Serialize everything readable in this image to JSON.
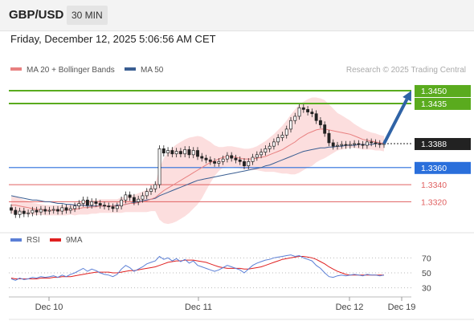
{
  "header": {
    "symbol": "GBP/USD",
    "timeframe": "30 MIN"
  },
  "timestamp": "Friday, December 12, 2025 5:06:56 AM CET",
  "attribution": "Research © 2025 Trading Central",
  "colors": {
    "resistance": "#5aab1e",
    "support": "#2a6fdb",
    "last": "#222222",
    "minor": "#e06060",
    "ma20": "#e88080",
    "ma50": "#3a5e92",
    "band": "#fbd3d3",
    "rsi": "#5b7fd6",
    "rsi_ma": "#e02020",
    "arrow": "#2f63a6"
  },
  "chart_data": [
    {
      "type": "candlestick",
      "legend": [
        {
          "name": "MA 20 + Bollinger Bands",
          "color": "#e88080"
        },
        {
          "name": "MA 50",
          "color": "#3a5e92"
        }
      ],
      "y_range": [
        1.3295,
        1.3465
      ],
      "x_labels": [
        "Dec 10",
        "Dec 11",
        "Dec 12",
        "Dec 19"
      ],
      "levels": [
        {
          "value": 1.345,
          "label": "1.3450",
          "kind": "resistance"
        },
        {
          "value": 1.3435,
          "label": "1.3435",
          "kind": "resistance"
        },
        {
          "value": 1.3388,
          "label": "1.3388",
          "kind": "last"
        },
        {
          "value": 1.336,
          "label": "1.3360",
          "kind": "support"
        },
        {
          "value": 1.334,
          "label": "1.3340",
          "kind": "minor"
        },
        {
          "value": 1.332,
          "label": "1.3320",
          "kind": "minor"
        }
      ],
      "projection": {
        "from": 1.3388,
        "to": 1.345
      },
      "close": [
        1.331,
        1.3305,
        1.3309,
        1.3306,
        1.3307,
        1.331,
        1.3308,
        1.3311,
        1.3309,
        1.331,
        1.3311,
        1.3309,
        1.3313,
        1.331,
        1.3312,
        1.3315,
        1.3318,
        1.3322,
        1.3316,
        1.332,
        1.3318,
        1.3316,
        1.3315,
        1.3314,
        1.3312,
        1.3315,
        1.3322,
        1.3328,
        1.3325,
        1.332,
        1.3323,
        1.3327,
        1.3332,
        1.3335,
        1.334,
        1.3382,
        1.3377,
        1.338,
        1.3376,
        1.3379,
        1.3376,
        1.3381,
        1.3375,
        1.338,
        1.3373,
        1.3371,
        1.3369,
        1.3367,
        1.3365,
        1.3367,
        1.337,
        1.3374,
        1.3371,
        1.3369,
        1.3367,
        1.3362,
        1.3367,
        1.3372,
        1.3375,
        1.3378,
        1.3382,
        1.3385,
        1.339,
        1.3395,
        1.3398,
        1.3405,
        1.3415,
        1.342,
        1.343,
        1.3428,
        1.3425,
        1.3423,
        1.3415,
        1.341,
        1.34,
        1.3389,
        1.3385,
        1.3386,
        1.3387,
        1.3386,
        1.3387,
        1.3388,
        1.3387,
        1.3386,
        1.339,
        1.3389,
        1.3388,
        1.3387,
        1.3388
      ],
      "ma20": [
        1.3316,
        1.3316,
        1.3315,
        1.3314,
        1.3313,
        1.3312,
        1.3311,
        1.3311,
        1.331,
        1.331,
        1.331,
        1.331,
        1.331,
        1.331,
        1.3311,
        1.3311,
        1.3312,
        1.3313,
        1.3313,
        1.3314,
        1.3314,
        1.3315,
        1.3315,
        1.3315,
        1.3315,
        1.3315,
        1.3316,
        1.3317,
        1.3318,
        1.3318,
        1.3319,
        1.332,
        1.3321,
        1.3323,
        1.3325,
        1.3329,
        1.3333,
        1.3336,
        1.3339,
        1.3342,
        1.3345,
        1.3348,
        1.3351,
        1.3354,
        1.3357,
        1.336,
        1.3363,
        1.3366,
        1.3368,
        1.337,
        1.3372,
        1.3373,
        1.3373,
        1.3372,
        1.3371,
        1.337,
        1.337,
        1.337,
        1.3371,
        1.3372,
        1.3373,
        1.3375,
        1.3377,
        1.3379,
        1.3381,
        1.3384,
        1.3387,
        1.339,
        1.3394,
        1.3397,
        1.34,
        1.3402,
        1.3404,
        1.3405,
        1.3405,
        1.3404,
        1.3403,
        1.3402,
        1.3401,
        1.34,
        1.3399,
        1.3397,
        1.3395,
        1.3393,
        1.3392,
        1.3391,
        1.339,
        1.3389,
        1.3388
      ],
      "band_width": [
        0.001,
        0.001,
        0.0009,
        0.0008,
        0.0008,
        0.0007,
        0.0007,
        0.0006,
        0.0006,
        0.0006,
        0.0006,
        0.0006,
        0.0006,
        0.0006,
        0.0006,
        0.0007,
        0.0007,
        0.0008,
        0.0008,
        0.0008,
        0.0008,
        0.0008,
        0.0008,
        0.0008,
        0.0008,
        0.0008,
        0.0009,
        0.0009,
        0.001,
        0.001,
        0.0011,
        0.0012,
        0.0013,
        0.0014,
        0.0016,
        0.003,
        0.0038,
        0.0042,
        0.0044,
        0.0045,
        0.0045,
        0.0045,
        0.0044,
        0.0042,
        0.004,
        0.0036,
        0.003,
        0.0024,
        0.0018,
        0.0014,
        0.0012,
        0.0012,
        0.0012,
        0.0012,
        0.0012,
        0.0012,
        0.0012,
        0.0013,
        0.0014,
        0.0016,
        0.0018,
        0.002,
        0.0022,
        0.0025,
        0.0028,
        0.0031,
        0.0035,
        0.0038,
        0.004,
        0.004,
        0.004,
        0.004,
        0.0038,
        0.0036,
        0.0034,
        0.003,
        0.0026,
        0.0022,
        0.002,
        0.0018,
        0.0016,
        0.0014,
        0.0013,
        0.0012,
        0.0011,
        0.001,
        0.001,
        0.0009,
        0.0009
      ],
      "ma50": [
        1.3327,
        1.3326,
        1.3325,
        1.3324,
        1.3323,
        1.3322,
        1.3322,
        1.3321,
        1.332,
        1.332,
        1.3319,
        1.3318,
        1.3318,
        1.3317,
        1.3317,
        1.3316,
        1.3316,
        1.3316,
        1.3315,
        1.3315,
        1.3315,
        1.3315,
        1.3315,
        1.3315,
        1.3315,
        1.3316,
        1.3316,
        1.3317,
        1.3318,
        1.3319,
        1.332,
        1.3321,
        1.3322,
        1.3323,
        1.3324,
        1.3327,
        1.3329,
        1.3331,
        1.3333,
        1.3335,
        1.3337,
        1.3339,
        1.3341,
        1.3343,
        1.3345,
        1.3346,
        1.3347,
        1.3348,
        1.3349,
        1.335,
        1.3351,
        1.3352,
        1.3353,
        1.3354,
        1.3355,
        1.3356,
        1.3357,
        1.3358,
        1.3359,
        1.336,
        1.3362,
        1.3363,
        1.3365,
        1.3367,
        1.3369,
        1.3371,
        1.3373,
        1.3375,
        1.3377,
        1.3379,
        1.338,
        1.3381,
        1.3382,
        1.3383,
        1.3383,
        1.3384,
        1.3384,
        1.3385,
        1.3385,
        1.3386,
        1.3386,
        1.3386,
        1.3387,
        1.3387,
        1.3387,
        1.3387,
        1.3388,
        1.3388,
        1.3388
      ]
    },
    {
      "type": "line",
      "legend": [
        {
          "name": "RSI",
          "color": "#5b7fd6"
        },
        {
          "name": "9MA",
          "color": "#e02020"
        }
      ],
      "y_range": [
        20,
        80
      ],
      "y_ticks": [
        70,
        50,
        30
      ],
      "rsi": [
        42,
        40,
        43,
        41,
        42,
        44,
        43,
        45,
        44,
        45,
        46,
        44,
        47,
        45,
        48,
        50,
        53,
        56,
        52,
        55,
        53,
        50,
        48,
        47,
        45,
        48,
        55,
        60,
        57,
        52,
        55,
        58,
        62,
        64,
        66,
        72,
        68,
        70,
        66,
        69,
        65,
        68,
        63,
        66,
        60,
        58,
        56,
        54,
        52,
        54,
        57,
        60,
        58,
        56,
        54,
        50,
        55,
        60,
        63,
        65,
        67,
        68,
        70,
        71,
        72,
        73,
        74,
        72,
        73,
        70,
        68,
        66,
        60,
        56,
        50,
        45,
        44,
        46,
        47,
        46,
        47,
        48,
        47,
        46,
        48,
        47,
        47,
        46,
        47
      ],
      "rsi_ma": [
        43,
        42,
        42,
        42,
        42,
        42,
        42,
        43,
        43,
        43,
        44,
        44,
        45,
        45,
        45,
        46,
        47,
        48,
        49,
        50,
        51,
        51,
        51,
        51,
        50,
        50,
        51,
        52,
        53,
        53,
        54,
        55,
        56,
        57,
        58,
        60,
        62,
        64,
        65,
        66,
        66,
        67,
        67,
        67,
        66,
        65,
        64,
        62,
        60,
        58,
        57,
        56,
        56,
        56,
        56,
        55,
        55,
        56,
        57,
        58,
        60,
        62,
        64,
        66,
        68,
        69,
        70,
        71,
        72,
        72,
        71,
        70,
        68,
        65,
        62,
        58,
        55,
        52,
        50,
        48,
        47,
        47,
        47,
        47,
        47,
        47,
        47,
        47,
        47
      ]
    }
  ]
}
